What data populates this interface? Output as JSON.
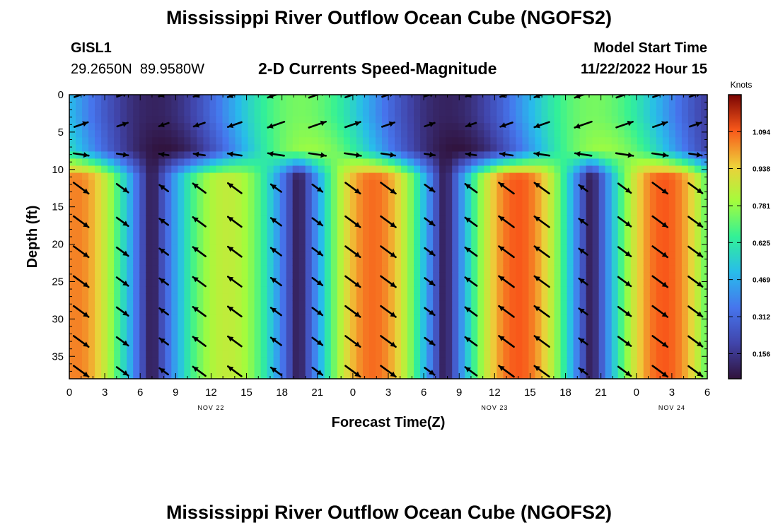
{
  "header": {
    "title": "Mississippi River Outflow Ocean Cube (NGOFS2)",
    "station_id": "GISL1",
    "station_coords": "29.2650N  89.9580W",
    "subtitle": "2-D Currents Speed-Magnitude",
    "model_start_label": "Model Start Time",
    "model_start_value": "11/22/2022 Hour 15"
  },
  "footer": {
    "title": "Mississippi River Outflow Ocean Cube (NGOFS2)"
  },
  "chart_data": {
    "type": "heatmap",
    "title": "2-D Currents Speed-Magnitude",
    "xlabel": "Forecast Time(Z)",
    "ylabel": "Depth (ft)",
    "x_range_hours": [
      0,
      54
    ],
    "x_tick_labels": [
      "0",
      "3",
      "6",
      "9",
      "12",
      "15",
      "18",
      "21",
      "0",
      "3",
      "6",
      "9",
      "12",
      "15",
      "18",
      "21",
      "0",
      "3",
      "6"
    ],
    "date_labels": [
      {
        "label": "NOV 22",
        "at_hour": 12
      },
      {
        "label": "NOV 23",
        "at_hour": 36
      },
      {
        "label": "NOV 24",
        "at_hour": 51
      }
    ],
    "y_range_ft": [
      0,
      38
    ],
    "y_reversed": true,
    "y_ticks": [
      "0",
      "5",
      "10",
      "15",
      "20",
      "25",
      "30",
      "35"
    ],
    "colorbar": {
      "unit": "Knots",
      "ticks": [
        "0.156",
        "0.312",
        "0.469",
        "0.625",
        "0.781",
        "0.938",
        "1.094"
      ],
      "min": 0.05,
      "max": 1.25
    },
    "speed_model": {
      "period_hours": 24.8,
      "phase_hours": 0.8,
      "deep_amp_knots": 1.05,
      "deep_floor_knots": 0.05,
      "surface_mean_knots": 0.42,
      "surface_amp_knots": 0.32,
      "mid_surface_amp_knots": 0.37,
      "mid_surface_shift_hours": 5.2,
      "layer_breaks_ft": [
        3,
        7.5,
        11
      ],
      "deep_trend_drop_knots": 0.25
    },
    "arrow_columns_hours": [
      1,
      4.5,
      8,
      11,
      14,
      17.5,
      21,
      24,
      27,
      30.5,
      34,
      37,
      40,
      43.5,
      47,
      50,
      53
    ],
    "arrow_rows_ft": [
      0,
      4,
      8,
      12.5,
      17,
      21,
      25,
      29,
      33,
      37
    ]
  }
}
